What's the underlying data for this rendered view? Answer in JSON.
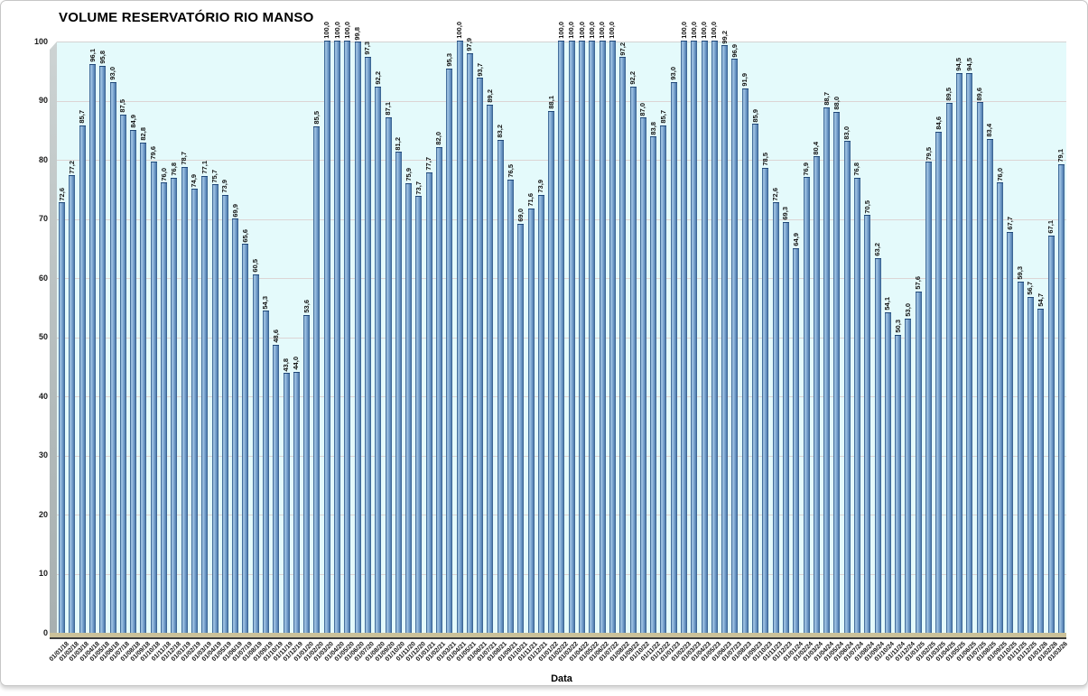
{
  "title": "VOLUME RESERVATÓRIO RIO MANSO",
  "colors": {
    "plot_background": "#e4fafb",
    "bar_fill_main": "#77a1cd",
    "bar_fill_light": "#a7c9e7",
    "bar_edge": "#2f5886",
    "gridline": "#dcd4d4",
    "wall": "#b3bbbb",
    "floor": "#cbc199",
    "text": "#000000"
  },
  "chart_data": {
    "type": "bar",
    "title": "VOLUME RESERVATÓRIO RIO MANSO",
    "xlabel": "Data",
    "ylabel": "",
    "ylim": [
      0,
      100
    ],
    "yticks": [
      0,
      10,
      20,
      30,
      40,
      50,
      60,
      70,
      80,
      90,
      100
    ],
    "grid": true,
    "legend": false,
    "decimal_separator": ",",
    "value_decimals": 1,
    "categories": [
      "01/01/18",
      "01/02/18",
      "01/03/18",
      "01/04/18",
      "01/05/18",
      "01/06/18",
      "01/07/18",
      "01/08/18",
      "01/09/18",
      "01/10/18",
      "01/11/18",
      "01/12/18",
      "01/01/19",
      "01/02/19",
      "01/03/19",
      "01/04/19",
      "01/05/19",
      "01/06/19",
      "01/07/19",
      "01/08/19",
      "01/09/19",
      "01/10/19",
      "01/11/19",
      "01/12/19",
      "01/01/20",
      "01/02/20",
      "01/03/20",
      "01/04/20",
      "01/05/20",
      "01/06/20",
      "01/07/20",
      "01/08/20",
      "01/09/20",
      "01/10/20",
      "01/11/20",
      "01/12/20",
      "01/01/21",
      "01/02/21",
      "01/03/21",
      "01/04/21",
      "01/05/21",
      "01/06/21",
      "01/07/21",
      "01/08/21",
      "01/09/21",
      "01/10/21",
      "01/11/21",
      "01/12/21",
      "01/01/22",
      "01/02/22",
      "01/03/22",
      "01/04/22",
      "01/05/22",
      "01/06/22",
      "01/07/22",
      "01/08/22",
      "01/09/22",
      "01/10/22",
      "01/11/22",
      "01/12/22",
      "01/01/23",
      "01/02/23",
      "01/03/23",
      "01/04/23",
      "01/05/23",
      "01/06/23",
      "01/07/23",
      "01/08/23",
      "01/09/23",
      "01/10/23",
      "01/11/23",
      "01/12/23",
      "01/01/24",
      "01/02/24",
      "01/03/24",
      "01/04/24",
      "01/05/24",
      "01/06/24",
      "01/07/24",
      "01/08/24",
      "01/09/24",
      "01/10/24",
      "01/11/24",
      "01/12/24",
      "01/01/25",
      "01/02/25",
      "01/03/25",
      "01/04/25",
      "01/05/25",
      "01/06/25",
      "01/07/25",
      "01/08/25",
      "01/09/25",
      "01/10/25",
      "01/11/25",
      "01/12/25",
      "01/01/26",
      "01/02/26",
      "01/03/26"
    ],
    "values": [
      72.6,
      77.2,
      85.7,
      96.1,
      95.8,
      93.0,
      87.5,
      84.9,
      82.8,
      79.6,
      76.0,
      76.8,
      78.7,
      74.9,
      77.1,
      75.7,
      73.9,
      69.9,
      65.6,
      60.5,
      54.3,
      48.6,
      43.8,
      44.0,
      53.6,
      85.5,
      100.0,
      100.0,
      100.0,
      99.8,
      97.3,
      92.2,
      87.1,
      81.2,
      75.9,
      73.7,
      77.7,
      82.0,
      95.3,
      100.0,
      97.9,
      93.7,
      89.2,
      83.2,
      76.5,
      69.0,
      71.6,
      73.9,
      88.1,
      100.0,
      100.0,
      100.0,
      100.0,
      100.0,
      100.0,
      97.2,
      92.2,
      87.0,
      83.8,
      85.7,
      93.0,
      100.0,
      100.0,
      100.0,
      100.0,
      99.2,
      96.9,
      91.9,
      85.9,
      78.5,
      72.6,
      69.3,
      64.9,
      76.9,
      80.4,
      88.7,
      88.0,
      83.0,
      76.8,
      70.5,
      63.2,
      54.1,
      50.3,
      53.0,
      57.6,
      79.5,
      84.6,
      89.5,
      94.5,
      94.5,
      89.6,
      83.4,
      76.0,
      67.7,
      59.3,
      56.7,
      54.7,
      67.1,
      79.1
    ]
  }
}
